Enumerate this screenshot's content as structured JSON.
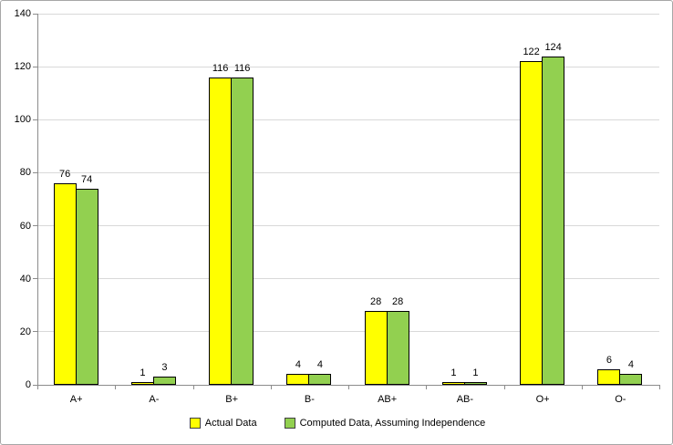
{
  "chart_data": {
    "type": "bar",
    "categories": [
      "A+",
      "A-",
      "B+",
      "B-",
      "AB+",
      "AB-",
      "O+",
      "O-"
    ],
    "series": [
      {
        "name": "Actual Data",
        "color": "#ffff00",
        "values": [
          76,
          1,
          116,
          4,
          28,
          1,
          122,
          6
        ]
      },
      {
        "name": "Computed Data, Assuming Independence",
        "color": "#92d050",
        "values": [
          74,
          3,
          116,
          4,
          28,
          1,
          124,
          4
        ]
      }
    ],
    "title": "",
    "xlabel": "",
    "ylabel": "",
    "ylim": [
      0,
      140
    ],
    "ytick_step": 20,
    "ytick_labels": [
      "0",
      "20",
      "40",
      "60",
      "80",
      "100",
      "120",
      "140"
    ],
    "grid": true,
    "legend_position": "bottom",
    "bar_border_color": "#000000",
    "gridline_color": "#d9d9d9",
    "axis_color": "#8c8c8c",
    "background_color": "#ffffff"
  }
}
